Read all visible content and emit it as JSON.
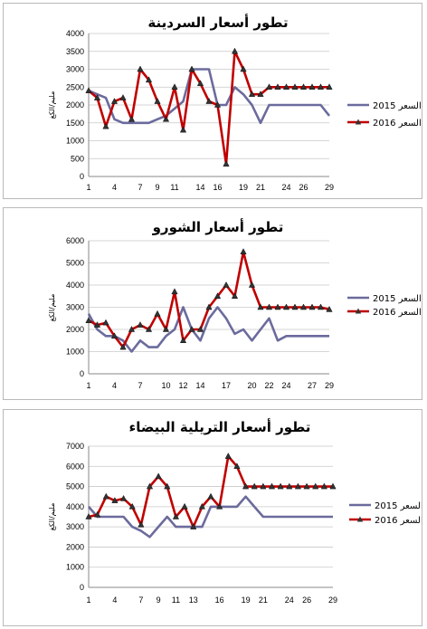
{
  "chart_data": [
    {
      "type": "line",
      "title": "تطور أسعار السردينة",
      "ylabel": "مليم/الكغ",
      "xlabel": "",
      "ylim": [
        0,
        4000
      ],
      "yticks": [
        0,
        500,
        1000,
        1500,
        2000,
        2500,
        3000,
        3500,
        4000
      ],
      "xticks": [
        1,
        4,
        7,
        9,
        11,
        14,
        16,
        19,
        21,
        24,
        26,
        29
      ],
      "x": [
        1,
        2,
        3,
        4,
        5,
        6,
        7,
        8,
        9,
        10,
        11,
        12,
        13,
        14,
        15,
        16,
        17,
        18,
        19,
        20,
        21,
        22,
        23,
        24,
        25,
        26,
        27,
        28,
        29
      ],
      "legend_position": "right",
      "series": [
        {
          "name": "2015 السعر",
          "color": "#6b6b9d",
          "marker": "none",
          "values": [
            2400,
            2300,
            2200,
            1600,
            1500,
            1500,
            1500,
            1500,
            1600,
            1700,
            1900,
            2100,
            3000,
            3000,
            3000,
            2000,
            2000,
            2500,
            2300,
            2000,
            1500,
            2000,
            2000,
            2000,
            2000,
            2000,
            2000,
            2000,
            1700
          ]
        },
        {
          "name": "2016 السعر",
          "color": "#c00000",
          "marker": "triangle",
          "values": [
            2400,
            2200,
            1400,
            2100,
            2200,
            1600,
            3000,
            2700,
            2100,
            1600,
            2500,
            1300,
            3000,
            2600,
            2100,
            2000,
            350,
            3500,
            3000,
            2300,
            2300,
            2500,
            2500,
            2500,
            2500,
            2500,
            2500,
            2500,
            2500
          ]
        }
      ]
    },
    {
      "type": "line",
      "title": "تطور أسعار الشورو",
      "ylabel": "مليم/الكغ",
      "xlabel": "",
      "ylim": [
        0,
        6000
      ],
      "yticks": [
        0,
        1000,
        2000,
        3000,
        4000,
        5000,
        6000
      ],
      "xticks": [
        1,
        4,
        7,
        10,
        12,
        14,
        17,
        20,
        22,
        24,
        27,
        29
      ],
      "x": [
        1,
        2,
        3,
        4,
        5,
        6,
        7,
        8,
        9,
        10,
        11,
        12,
        13,
        14,
        15,
        16,
        17,
        18,
        19,
        20,
        21,
        22,
        23,
        24,
        25,
        26,
        27,
        28,
        29
      ],
      "legend_position": "right",
      "series": [
        {
          "name": "2015 السعر",
          "color": "#6b6b9d",
          "marker": "none",
          "values": [
            2700,
            2000,
            1700,
            1700,
            1500,
            1000,
            1500,
            1200,
            1200,
            1700,
            2000,
            3000,
            2000,
            1500,
            2500,
            3000,
            2500,
            1800,
            2000,
            1500,
            2000,
            2500,
            1500,
            1700,
            1700,
            1700,
            1700,
            1700,
            1700
          ]
        },
        {
          "name": "2016 السعر",
          "color": "#c00000",
          "marker": "triangle",
          "values": [
            2400,
            2200,
            2300,
            1700,
            1200,
            2000,
            2200,
            2000,
            2700,
            2000,
            3700,
            1500,
            2000,
            2000,
            3000,
            3500,
            4000,
            3500,
            5500,
            4000,
            3000,
            3000,
            3000,
            3000,
            3000,
            3000,
            3000,
            3000,
            2900
          ]
        }
      ]
    },
    {
      "type": "line",
      "title": "تطور أسعار التريلية البيضاء",
      "ylabel": "مليم/الكغ",
      "xlabel": "",
      "ylim": [
        0,
        7000
      ],
      "yticks": [
        0,
        1000,
        2000,
        3000,
        4000,
        5000,
        6000,
        7000
      ],
      "xticks": [
        1,
        4,
        7,
        9,
        11,
        13,
        16,
        19,
        21,
        24,
        26,
        29
      ],
      "x": [
        1,
        2,
        3,
        4,
        5,
        6,
        7,
        8,
        9,
        10,
        11,
        12,
        13,
        14,
        15,
        16,
        17,
        18,
        19,
        20,
        21,
        22,
        23,
        24,
        25,
        26,
        27,
        28,
        29
      ],
      "legend_position": "right",
      "series": [
        {
          "name": "2015 السعر",
          "color": "#6b6b9d",
          "marker": "none",
          "values": [
            4000,
            3500,
            3500,
            3500,
            3500,
            3000,
            2800,
            2500,
            3000,
            3500,
            3000,
            3000,
            3000,
            3000,
            4000,
            4000,
            4000,
            4000,
            4500,
            4000,
            3500,
            3500,
            3500,
            3500,
            3500,
            3500,
            3500,
            3500,
            3500
          ]
        },
        {
          "name": "2016 السعر",
          "color": "#c00000",
          "marker": "triangle",
          "values": [
            3500,
            3600,
            4500,
            4300,
            4400,
            4000,
            3100,
            5000,
            5500,
            5000,
            3500,
            4000,
            3000,
            4000,
            4500,
            4000,
            6500,
            6000,
            5000,
            5000,
            5000,
            5000,
            5000,
            5000,
            5000,
            5000,
            5000,
            5000,
            5000
          ]
        }
      ]
    }
  ]
}
